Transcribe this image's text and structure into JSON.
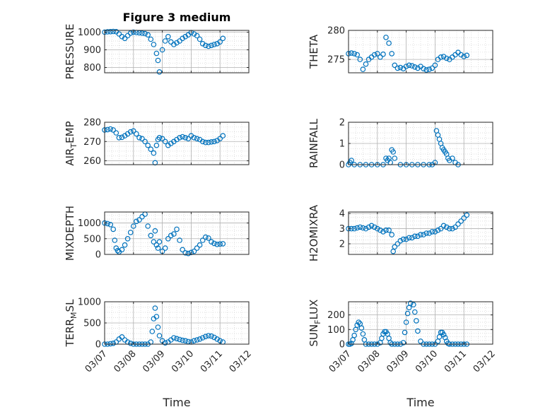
{
  "title": "Figure 3 medium",
  "chart_data": [
    {
      "type": "scatter",
      "title": "Figure 3 medium",
      "ylabel": "PRESSURE",
      "ylabel_sub": "",
      "ylabel_tail": "",
      "ylim": [
        770,
        1010
      ],
      "yticks": [
        800,
        900,
        1000
      ],
      "x": [
        7.0,
        7.1,
        7.2,
        7.3,
        7.4,
        7.5,
        7.6,
        7.7,
        7.8,
        7.9,
        8.0,
        8.1,
        8.2,
        8.3,
        8.4,
        8.5,
        8.6,
        8.7,
        8.8,
        8.85,
        8.9,
        9.0,
        9.1,
        9.2,
        9.3,
        9.4,
        9.5,
        9.6,
        9.7,
        9.8,
        9.9,
        10.0,
        10.1,
        10.2,
        10.3,
        10.4,
        10.5,
        10.6,
        10.7,
        10.8,
        10.9,
        11.0,
        11.1
      ],
      "y": [
        1000,
        1002,
        1003,
        1004,
        1003,
        990,
        975,
        965,
        980,
        995,
        1000,
        998,
        996,
        994,
        992,
        985,
        960,
        930,
        880,
        840,
        775,
        900,
        950,
        975,
        945,
        930,
        940,
        950,
        965,
        975,
        985,
        998,
        990,
        980,
        960,
        935,
        925,
        920,
        925,
        930,
        935,
        945,
        965
      ]
    },
    {
      "type": "scatter",
      "title": "",
      "ylabel": "THETA",
      "ylabel_sub": "",
      "ylabel_tail": "",
      "ylim": [
        272.7,
        280
      ],
      "yticks": [
        275,
        280
      ],
      "x": [
        7.0,
        7.1,
        7.2,
        7.3,
        7.4,
        7.5,
        7.6,
        7.7,
        7.8,
        7.9,
        8.0,
        8.1,
        8.2,
        8.3,
        8.4,
        8.5,
        8.6,
        8.7,
        8.8,
        8.9,
        9.0,
        9.1,
        9.2,
        9.3,
        9.4,
        9.5,
        9.6,
        9.7,
        9.8,
        9.9,
        10.0,
        10.1,
        10.2,
        10.3,
        10.4,
        10.5,
        10.6,
        10.7,
        10.8,
        10.9,
        11.0,
        11.1
      ],
      "y": [
        276.0,
        276.1,
        276.0,
        275.8,
        275.0,
        273.3,
        274.2,
        275.0,
        275.4,
        275.8,
        276.0,
        275.4,
        275.9,
        278.8,
        277.8,
        276.0,
        274.0,
        273.5,
        273.6,
        273.4,
        273.8,
        274.0,
        273.9,
        273.7,
        273.5,
        273.8,
        273.4,
        273.2,
        273.3,
        273.5,
        274.0,
        275.0,
        275.4,
        275.5,
        275.2,
        275.0,
        275.4,
        275.8,
        276.2,
        275.8,
        275.5,
        275.7
      ]
    },
    {
      "type": "scatter",
      "title": "",
      "ylabel": "AIR",
      "ylabel_sub": "T",
      "ylabel_tail": "EMP",
      "ylim": [
        258,
        280
      ],
      "yticks": [
        260,
        270,
        280
      ],
      "x": [
        7.0,
        7.1,
        7.2,
        7.3,
        7.4,
        7.5,
        7.6,
        7.7,
        7.8,
        7.9,
        8.0,
        8.1,
        8.2,
        8.3,
        8.4,
        8.5,
        8.6,
        8.7,
        8.75,
        8.8,
        8.85,
        8.9,
        9.0,
        9.1,
        9.2,
        9.3,
        9.4,
        9.5,
        9.6,
        9.7,
        9.8,
        9.9,
        10.0,
        10.1,
        10.2,
        10.3,
        10.4,
        10.5,
        10.6,
        10.7,
        10.8,
        10.9,
        11.0,
        11.1
      ],
      "y": [
        276,
        276.2,
        276.5,
        276,
        274.5,
        272,
        272.2,
        273,
        274,
        275,
        275.5,
        274,
        272,
        271.5,
        270,
        268,
        266,
        264,
        259,
        268,
        271,
        272,
        271.5,
        270,
        268,
        269,
        270,
        271,
        272,
        272.5,
        272,
        271.5,
        273,
        272,
        271.5,
        271,
        270,
        269.5,
        269.5,
        269.8,
        270,
        270.5,
        271.5,
        273
      ]
    },
    {
      "type": "scatter",
      "title": "",
      "ylabel": "RAINFALL",
      "ylabel_sub": "",
      "ylabel_tail": "",
      "ylim": [
        0,
        2
      ],
      "yticks": [
        0,
        1,
        2
      ],
      "x": [
        7.0,
        7.05,
        7.1,
        7.2,
        7.4,
        7.6,
        7.8,
        8.0,
        8.2,
        8.3,
        8.35,
        8.4,
        8.45,
        8.5,
        8.55,
        8.6,
        8.8,
        9.0,
        9.2,
        9.4,
        9.6,
        9.8,
        9.9,
        10.0,
        10.05,
        10.1,
        10.15,
        10.2,
        10.25,
        10.3,
        10.35,
        10.4,
        10.45,
        10.5,
        10.6,
        10.7,
        10.8
      ],
      "y": [
        0,
        0.1,
        0.2,
        0,
        0,
        0,
        0,
        0,
        0,
        0.3,
        0.2,
        0.3,
        0.1,
        0.7,
        0.6,
        0.3,
        0,
        0,
        0,
        0,
        0,
        0,
        0,
        0.1,
        1.6,
        1.4,
        1.2,
        1.0,
        0.8,
        0.7,
        0.6,
        0.5,
        0.3,
        0.2,
        0.3,
        0.1,
        0
      ]
    },
    {
      "type": "scatter",
      "title": "",
      "ylabel": "MIXDEPTH",
      "ylabel_sub": "",
      "ylabel_tail": "",
      "ylim": [
        0,
        1350
      ],
      "yticks": [
        0,
        500,
        1000
      ],
      "x": [
        7.0,
        7.1,
        7.2,
        7.3,
        7.35,
        7.4,
        7.45,
        7.5,
        7.6,
        7.7,
        7.8,
        7.9,
        8.0,
        8.1,
        8.2,
        8.3,
        8.4,
        8.5,
        8.6,
        8.7,
        8.75,
        8.8,
        8.85,
        8.9,
        9.0,
        9.1,
        9.2,
        9.3,
        9.4,
        9.5,
        9.6,
        9.7,
        9.8,
        9.9,
        10.0,
        10.1,
        10.2,
        10.3,
        10.4,
        10.5,
        10.6,
        10.7,
        10.8,
        10.9,
        11.0,
        11.1
      ],
      "y": [
        1000,
        980,
        950,
        800,
        450,
        200,
        120,
        80,
        150,
        300,
        500,
        700,
        900,
        1050,
        1100,
        1200,
        1280,
        900,
        600,
        400,
        750,
        300,
        200,
        400,
        100,
        200,
        500,
        600,
        650,
        800,
        450,
        150,
        50,
        30,
        60,
        100,
        200,
        300,
        450,
        550,
        520,
        400,
        350,
        320,
        330,
        340
      ]
    },
    {
      "type": "scatter",
      "title": "",
      "ylabel": "H2OMIXRA",
      "ylabel_sub": "",
      "ylabel_tail": "",
      "ylim": [
        1.3,
        4.1
      ],
      "yticks": [
        2,
        3,
        4
      ],
      "x": [
        7.0,
        7.1,
        7.2,
        7.3,
        7.4,
        7.5,
        7.6,
        7.7,
        7.8,
        7.9,
        8.0,
        8.1,
        8.2,
        8.3,
        8.4,
        8.5,
        8.55,
        8.6,
        8.7,
        8.8,
        8.9,
        9.0,
        9.1,
        9.2,
        9.3,
        9.4,
        9.5,
        9.6,
        9.7,
        9.8,
        9.9,
        10.0,
        10.1,
        10.2,
        10.3,
        10.4,
        10.5,
        10.6,
        10.7,
        10.8,
        10.9,
        11.0,
        11.1
      ],
      "y": [
        3.0,
        3.0,
        3.0,
        3.05,
        3.1,
        3.05,
        3.0,
        3.1,
        3.2,
        3.1,
        3.0,
        2.9,
        2.8,
        2.9,
        2.9,
        2.6,
        1.5,
        1.8,
        2.0,
        2.2,
        2.3,
        2.3,
        2.4,
        2.4,
        2.5,
        2.5,
        2.6,
        2.6,
        2.7,
        2.7,
        2.8,
        2.8,
        2.9,
        3.0,
        3.2,
        3.1,
        3.0,
        3.0,
        3.1,
        3.3,
        3.5,
        3.7,
        3.9
      ]
    },
    {
      "type": "scatter",
      "title": "",
      "ylabel": "TERR",
      "ylabel_sub": "M",
      "ylabel_tail": "SL",
      "ylim": [
        0,
        1000
      ],
      "yticks": [
        0,
        500,
        1000
      ],
      "x": [
        7.0,
        7.1,
        7.2,
        7.3,
        7.4,
        7.5,
        7.6,
        7.7,
        7.8,
        7.9,
        8.0,
        8.1,
        8.2,
        8.3,
        8.4,
        8.5,
        8.6,
        8.65,
        8.7,
        8.75,
        8.8,
        8.85,
        8.9,
        9.0,
        9.1,
        9.2,
        9.3,
        9.4,
        9.5,
        9.6,
        9.7,
        9.8,
        9.9,
        10.0,
        10.1,
        10.2,
        10.3,
        10.4,
        10.5,
        10.6,
        10.7,
        10.8,
        10.9,
        11.0,
        11.1
      ],
      "y": [
        0,
        0,
        10,
        20,
        50,
        120,
        170,
        100,
        50,
        20,
        0,
        0,
        0,
        0,
        0,
        0,
        50,
        300,
        600,
        850,
        650,
        400,
        200,
        80,
        30,
        50,
        100,
        150,
        130,
        110,
        90,
        80,
        60,
        50,
        80,
        100,
        120,
        150,
        180,
        200,
        190,
        160,
        120,
        80,
        50
      ]
    },
    {
      "type": "scatter",
      "title": "",
      "ylabel": "SUN",
      "ylabel_sub": "F",
      "ylabel_tail": "LUX",
      "ylim": [
        0,
        290
      ],
      "yticks": [
        0,
        100,
        200
      ],
      "x": [
        7.0,
        7.05,
        7.1,
        7.15,
        7.2,
        7.25,
        7.3,
        7.35,
        7.4,
        7.45,
        7.5,
        7.55,
        7.6,
        7.7,
        7.8,
        7.9,
        8.0,
        8.1,
        8.15,
        8.2,
        8.25,
        8.3,
        8.35,
        8.4,
        8.45,
        8.5,
        8.6,
        8.7,
        8.8,
        8.9,
        8.95,
        9.0,
        9.05,
        9.1,
        9.15,
        9.2,
        9.25,
        9.3,
        9.35,
        9.4,
        9.5,
        9.6,
        9.7,
        9.8,
        9.9,
        10.0,
        10.1,
        10.15,
        10.2,
        10.25,
        10.3,
        10.35,
        10.4,
        10.45,
        10.5,
        10.6,
        10.7,
        10.8,
        10.9,
        11.0,
        11.1
      ],
      "y": [
        0,
        0,
        5,
        30,
        60,
        100,
        130,
        150,
        140,
        110,
        70,
        30,
        0,
        0,
        0,
        0,
        0,
        10,
        40,
        70,
        85,
        85,
        70,
        40,
        10,
        0,
        0,
        0,
        0,
        10,
        80,
        150,
        210,
        250,
        280,
        295,
        270,
        220,
        160,
        90,
        20,
        0,
        0,
        0,
        0,
        0,
        20,
        50,
        80,
        80,
        65,
        45,
        20,
        5,
        0,
        0,
        0,
        0,
        0,
        0,
        0
      ]
    }
  ],
  "x_axis": {
    "label": "Time",
    "ticks": [
      {
        "v": 7,
        "t": "03/07"
      },
      {
        "v": 8,
        "t": "03/08"
      },
      {
        "v": 9,
        "t": "03/09"
      },
      {
        "v": 10,
        "t": "03/10"
      },
      {
        "v": 11,
        "t": "03/11"
      },
      {
        "v": 12,
        "t": "03/12"
      }
    ],
    "xlim": [
      7,
      12
    ]
  },
  "colors": {
    "marker": "#0072BD",
    "axis": "#262626",
    "grid": "#b0b0b0",
    "grid_minor": "#d4d4d4"
  }
}
